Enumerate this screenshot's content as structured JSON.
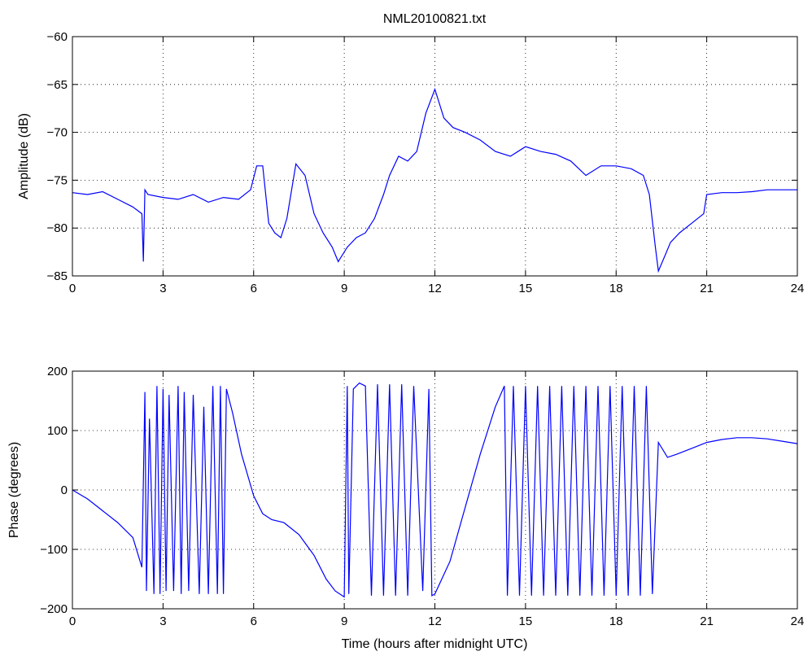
{
  "chart_data": [
    {
      "type": "line",
      "title": "NML20100821.txt",
      "xlabel": "",
      "ylabel": "Amplitude (dB)",
      "xlim": [
        0,
        24
      ],
      "ylim": [
        -85,
        -60
      ],
      "xticks": [
        "0",
        "3",
        "6",
        "9",
        "12",
        "15",
        "18",
        "21",
        "24"
      ],
      "yticks": [
        "-60",
        "-65",
        "-70",
        "-75",
        "-80",
        "-85"
      ],
      "grid": true,
      "color": "#0000ff",
      "series": [
        {
          "x": [
            0,
            0.5,
            1,
            1.5,
            2,
            2.3,
            2.35,
            2.4,
            2.5,
            3,
            3.5,
            4,
            4.5,
            5,
            5.5,
            5.9,
            6.1,
            6.3,
            6.5,
            6.7,
            6.9,
            7.1,
            7.4,
            7.7,
            8,
            8.3,
            8.6,
            8.8,
            9.1,
            9.4,
            9.7,
            10,
            10.3,
            10.5,
            10.8,
            11.1,
            11.4,
            11.7,
            12,
            12.3,
            12.6,
            13,
            13.5,
            14,
            14.5,
            15,
            15.5,
            16,
            16.5,
            17,
            17.5,
            18,
            18.5,
            18.9,
            19.1,
            19.3,
            19.4,
            19.6,
            19.8,
            20.1,
            20.5,
            20.9,
            21,
            21.5,
            22,
            22.5,
            23,
            23.5,
            24
          ],
          "y": [
            -76.3,
            -76.5,
            -76.2,
            -77,
            -77.8,
            -78.5,
            -83.5,
            -76,
            -76.5,
            -76.8,
            -77,
            -76.5,
            -77.3,
            -76.8,
            -77,
            -76,
            -73.5,
            -73.5,
            -79.5,
            -80.5,
            -81,
            -79,
            -73.3,
            -74.5,
            -78.5,
            -80.5,
            -82,
            -83.5,
            -82,
            -81,
            -80.5,
            -79,
            -76.5,
            -74.5,
            -72.5,
            -73,
            -72,
            -68,
            -65.5,
            -68.5,
            -69.5,
            -70,
            -70.8,
            -72,
            -72.5,
            -71.5,
            -72,
            -72.3,
            -73,
            -74.5,
            -73.5,
            -73.5,
            -73.8,
            -74.5,
            -76.5,
            -82,
            -84.5,
            -83,
            -81.5,
            -80.5,
            -79.5,
            -78.5,
            -76.5,
            -76.3,
            -76.3,
            -76.2,
            -76,
            -76,
            -76
          ]
        }
      ]
    },
    {
      "type": "line",
      "title": "",
      "xlabel": "Time (hours after midnight UTC)",
      "ylabel": "Phase (degrees)",
      "xlim": [
        0,
        24
      ],
      "ylim": [
        -200,
        200
      ],
      "xticks": [
        "0",
        "3",
        "6",
        "9",
        "12",
        "15",
        "18",
        "21",
        "24"
      ],
      "yticks": [
        "200",
        "100",
        "0",
        "-100",
        "-200"
      ],
      "grid": true,
      "color": "#0000ff",
      "series": [
        {
          "x": [
            0,
            0.5,
            1,
            1.5,
            2,
            2.3,
            2.4,
            2.45,
            2.55,
            2.7,
            2.8,
            2.9,
            3.0,
            3.1,
            3.2,
            3.35,
            3.5,
            3.6,
            3.7,
            3.85,
            4.0,
            4.2,
            4.35,
            4.5,
            4.65,
            4.8,
            4.9,
            5.0,
            5.1,
            5.3,
            5.6,
            6.0,
            6.3,
            6.6,
            7,
            7.5,
            8,
            8.4,
            8.7,
            9.0,
            9.1,
            9.15,
            9.3,
            9.5,
            9.7,
            9.9,
            10.1,
            10.3,
            10.5,
            10.7,
            10.9,
            11.1,
            11.3,
            11.6,
            11.8,
            11.9,
            12.0,
            12.5,
            13,
            13.5,
            14,
            14.3,
            14.4,
            14.6,
            14.8,
            15.0,
            15.2,
            15.4,
            15.6,
            15.8,
            16.0,
            16.2,
            16.4,
            16.6,
            16.8,
            17.0,
            17.2,
            17.4,
            17.6,
            17.8,
            18.0,
            18.2,
            18.4,
            18.6,
            18.8,
            19.0,
            19.2,
            19.4,
            19.7,
            20,
            20.5,
            21,
            21.5,
            22,
            22.5,
            23,
            23.5,
            24
          ],
          "y": [
            0,
            -15,
            -35,
            -55,
            -80,
            -130,
            165,
            -170,
            120,
            -175,
            175,
            -175,
            170,
            -170,
            160,
            -170,
            175,
            -175,
            165,
            -170,
            160,
            -175,
            140,
            -175,
            175,
            -175,
            175,
            -175,
            170,
            130,
            60,
            -10,
            -40,
            -50,
            -55,
            -75,
            -110,
            -150,
            -170,
            -180,
            175,
            -175,
            170,
            180,
            175,
            -178,
            178,
            -178,
            178,
            -178,
            178,
            -178,
            175,
            -170,
            170,
            -178,
            -175,
            -120,
            -30,
            60,
            140,
            175,
            -178,
            175,
            -178,
            175,
            -178,
            175,
            -178,
            175,
            -178,
            175,
            -178,
            175,
            -178,
            175,
            -178,
            175,
            -178,
            175,
            -178,
            175,
            -178,
            175,
            -178,
            175,
            -175,
            80,
            55,
            60,
            70,
            80,
            85,
            88,
            88,
            86,
            82,
            78
          ]
        }
      ]
    }
  ]
}
